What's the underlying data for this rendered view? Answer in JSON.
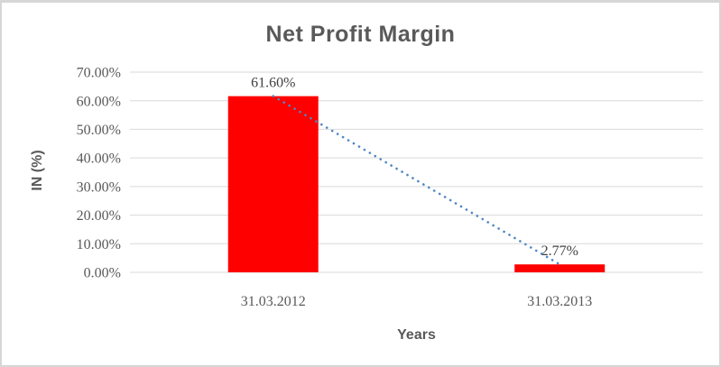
{
  "page": {
    "background": "#ffffff",
    "frame_color": "#d6d6d6"
  },
  "chart_data": {
    "type": "bar",
    "title": "Net Profit Margin",
    "xlabel": "Years",
    "ylabel": "IN (%)",
    "categories": [
      "31.03.2012",
      "31.03.2013"
    ],
    "values": [
      61.6,
      2.77
    ],
    "data_labels": [
      "61.60%",
      "2.77%"
    ],
    "ylim": [
      0,
      70
    ],
    "ytick_step": 10,
    "ytick_labels": [
      "0.00%",
      "10.00%",
      "20.00%",
      "30.00%",
      "40.00%",
      "50.00%",
      "60.00%",
      "70.00%"
    ],
    "grid": true,
    "legend_position": "none",
    "trendline": {
      "type": "linear",
      "style": "dotted",
      "from": [
        0,
        61.6
      ],
      "to": [
        1,
        2.77
      ]
    },
    "colors": {
      "bar": "#ff0000",
      "trendline": "#4e86c6",
      "gridline": "#d9d9d9",
      "title_text": "#595959",
      "axis_text": "#595959",
      "data_label_text": "#404040"
    }
  }
}
